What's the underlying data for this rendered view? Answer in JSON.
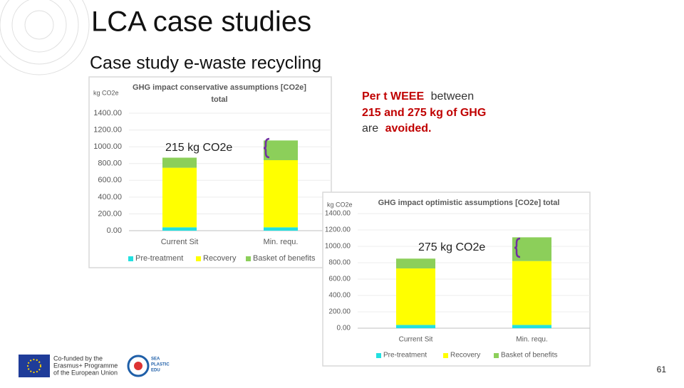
{
  "slide": {
    "title": "LCA case studies",
    "subtitle": "Case study e-waste recycling",
    "note_parts": [
      "Per t WEEE",
      "between",
      "215 and 275 kg of GHG",
      "are",
      "avoided."
    ],
    "logo_text": [
      "Co-funded by the",
      "Erasmus+ Programme",
      "of the European Union"
    ],
    "logo2_text": [
      "SEA",
      "PLASTIC",
      "EDU"
    ],
    "page_number": "61"
  },
  "chart_data": [
    {
      "type": "stacked_bar",
      "title": [
        "GHG impact conservative assumptions  [CO2e]",
        "total"
      ],
      "y_label": "kg CO2e",
      "annotation": "215 kg CO2e",
      "categories": [
        "Current Sit",
        "Min. requ."
      ],
      "series": [
        {
          "name": "Pre-treatment",
          "color": "#22e0e0",
          "values": [
            40,
            40
          ]
        },
        {
          "name": "Recovery",
          "color": "#ffff00",
          "values": [
            710,
            800
          ]
        },
        {
          "name": "Basket of benefits",
          "color": "#8ccf5a",
          "values": [
            120,
            235
          ]
        }
      ],
      "ylim": [
        0,
        1400
      ],
      "yticks": [
        {
          "value": 0,
          "label": "0.00"
        },
        {
          "value": 200,
          "label": "200.00"
        },
        {
          "value": 400,
          "label": "400.00"
        },
        {
          "value": 600,
          "label": "600.00"
        },
        {
          "value": 800,
          "label": "800.00"
        },
        {
          "value": 1000,
          "label": "1000.00"
        },
        {
          "value": 1200,
          "label": "1200.00"
        },
        {
          "value": 1400,
          "label": "1400.00"
        }
      ],
      "grid": true,
      "legend": "bottom"
    },
    {
      "type": "stacked_bar",
      "title": [
        "GHG impact optimistic assumptions  [CO2e] total"
      ],
      "y_label": "kg CO2e",
      "annotation": "275 kg CO2e",
      "categories": [
        "Current Sit",
        "Min. requ."
      ],
      "series": [
        {
          "name": "Pre-treatment",
          "color": "#22e0e0",
          "values": [
            40,
            40
          ]
        },
        {
          "name": "Recovery",
          "color": "#ffff00",
          "values": [
            690,
            780
          ]
        },
        {
          "name": "Basket of benefits",
          "color": "#8ccf5a",
          "values": [
            120,
            290
          ]
        }
      ],
      "ylim": [
        0,
        1400
      ],
      "yticks": [
        {
          "value": 0,
          "label": "0.00"
        },
        {
          "value": 200,
          "label": "200.00"
        },
        {
          "value": 400,
          "label": "400.00"
        },
        {
          "value": 600,
          "label": "600.00"
        },
        {
          "value": 800,
          "label": "800.00"
        },
        {
          "value": 1000,
          "label": "1000.00"
        },
        {
          "value": 1200,
          "label": "1200.00"
        },
        {
          "value": 1400,
          "label": "1400.00"
        }
      ],
      "grid": true,
      "legend": "bottom"
    }
  ]
}
